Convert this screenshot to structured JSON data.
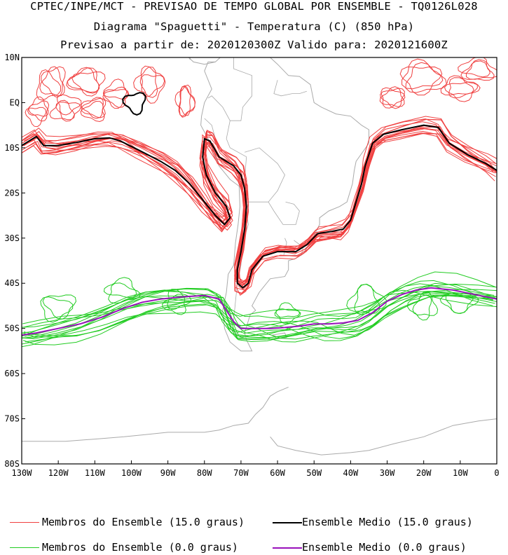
{
  "header": {
    "line1": "CPTEC/INPE/MCT - PREVISAO DE TEMPO GLOBAL POR ENSEMBLE - TQ0126L028",
    "line2": "Diagrama \"Spaguetti\" - Temperatura (C) (850 hPa)",
    "line3": "Previsao a partir de: 2020120300Z  Valido para: 2020121600Z"
  },
  "map": {
    "lat_labels": [
      "10N",
      "EQ",
      "10S",
      "20S",
      "30S",
      "40S",
      "50S",
      "60S",
      "70S",
      "80S"
    ],
    "lon_labels": [
      "130W",
      "120W",
      "110W",
      "100W",
      "90W",
      "80W",
      "70W",
      "60W",
      "50W",
      "40W",
      "30W",
      "20W",
      "10W",
      "0"
    ],
    "lon_range": [
      -130,
      0
    ],
    "lat_range": [
      -80,
      10
    ]
  },
  "colors": {
    "members_15": "#f04040",
    "mean_15": "#000000",
    "members_0": "#22cc22",
    "mean_0": "#9911bb",
    "coast": "#aaaaaa"
  },
  "legend": {
    "members_15": "Membros do Ensemble (15.0 graus)",
    "mean_15": "Ensemble Medio (15.0 graus)",
    "members_0": "Membros do Ensemble (0.0 graus)",
    "mean_0": "Ensemble Medio (0.0 graus)"
  }
}
